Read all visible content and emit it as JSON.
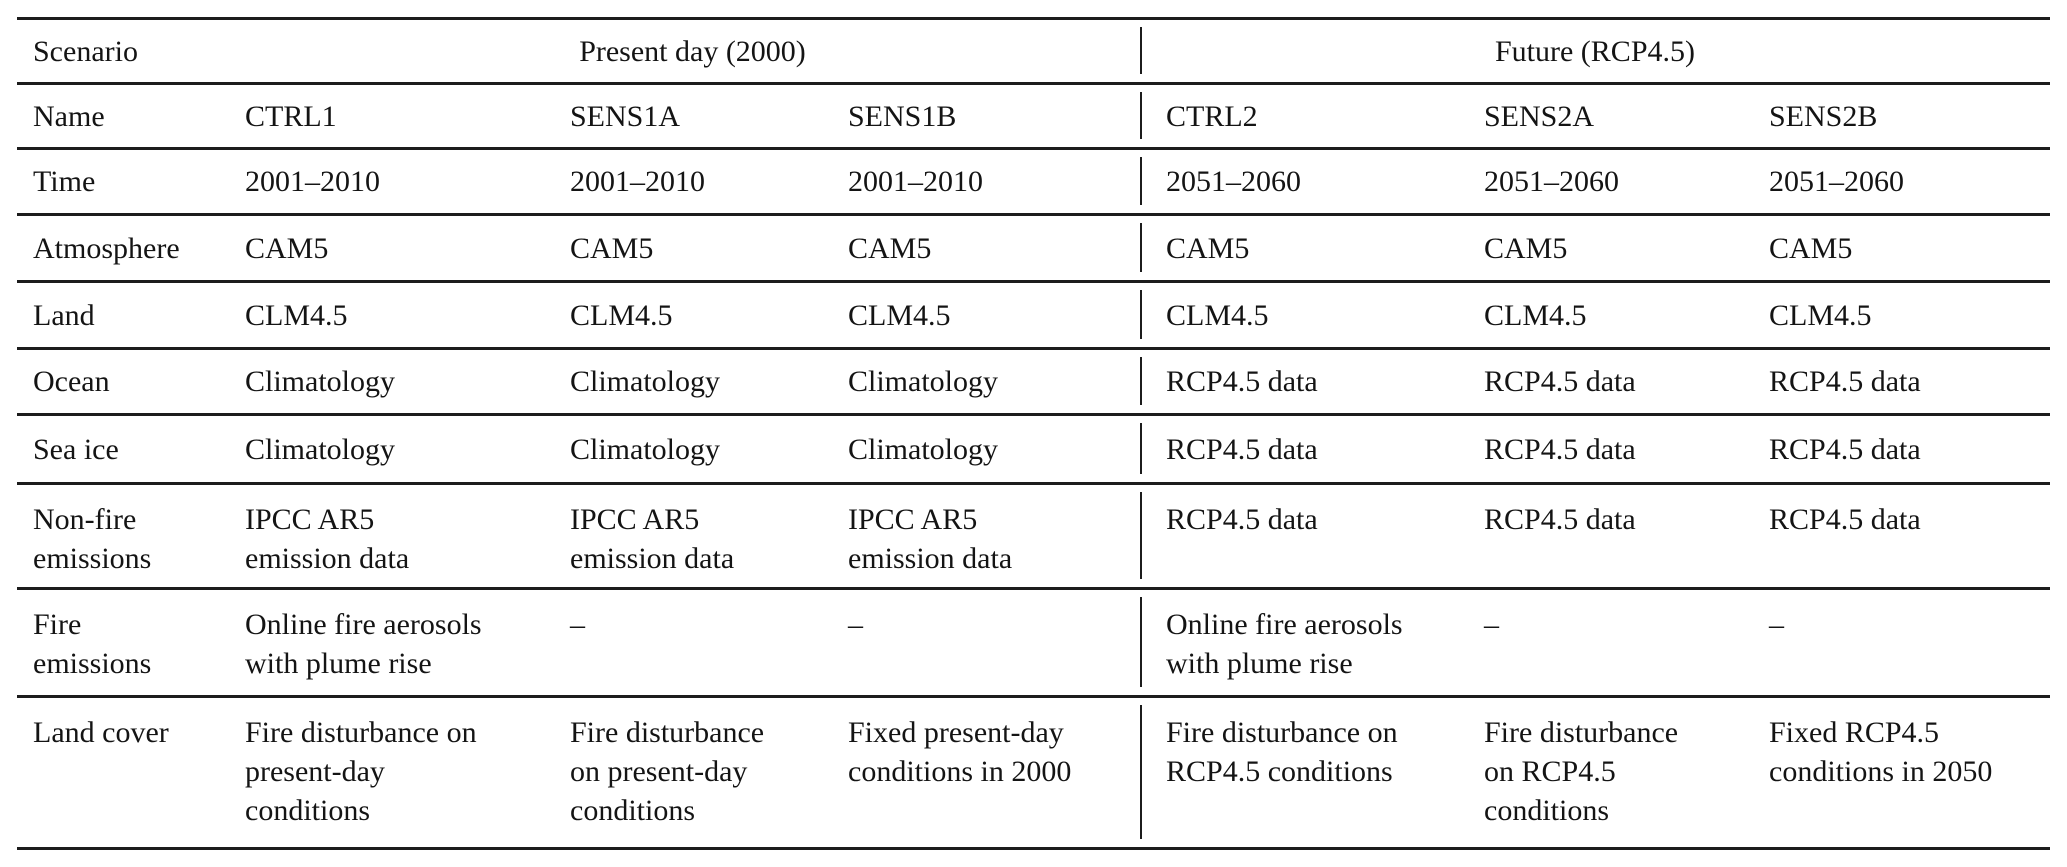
{
  "table": {
    "corner_label": "Scenario",
    "column_groups": [
      {
        "label": "Present day (2000)"
      },
      {
        "label": "Future (RCP4.5)"
      }
    ],
    "rows": [
      {
        "label": "Name",
        "cells": [
          "CTRL1",
          "SENS1A",
          "SENS1B",
          "CTRL2",
          "SENS2A",
          "SENS2B"
        ]
      },
      {
        "label": "Time",
        "cells": [
          "2001–2010",
          "2001–2010",
          "2001–2010",
          "2051–2060",
          "2051–2060",
          "2051–2060"
        ]
      },
      {
        "label": "Atmosphere",
        "cells": [
          "CAM5",
          "CAM5",
          "CAM5",
          "CAM5",
          "CAM5",
          "CAM5"
        ]
      },
      {
        "label": "Land",
        "cells": [
          "CLM4.5",
          "CLM4.5",
          "CLM4.5",
          "CLM4.5",
          "CLM4.5",
          "CLM4.5"
        ]
      },
      {
        "label": "Ocean",
        "cells": [
          "Climatology",
          "Climatology",
          "Climatology",
          "RCP4.5 data",
          "RCP4.5 data",
          "RCP4.5 data"
        ]
      },
      {
        "label": "Sea ice",
        "cells": [
          "Climatology",
          "Climatology",
          "Climatology",
          "RCP4.5 data",
          "RCP4.5 data",
          "RCP4.5 data"
        ]
      },
      {
        "label": "Non-fire\nemissions",
        "cells": [
          "IPCC AR5\nemission data",
          "IPCC AR5\nemission data",
          "IPCC AR5\nemission data",
          "RCP4.5 data",
          "RCP4.5 data",
          "RCP4.5 data"
        ]
      },
      {
        "label": "Fire\nemissions",
        "cells": [
          "Online fire aerosols\nwith plume rise",
          "–",
          "–",
          "Online fire aerosols\nwith plume rise",
          "–",
          "–"
        ]
      },
      {
        "label": "Land cover",
        "cells": [
          "Fire disturbance on\npresent-day\nconditions",
          "Fire disturbance\non present-day\nconditions",
          "Fixed present-day\nconditions in 2000",
          "Fire disturbance on\nRCP4.5 conditions",
          "Fire disturbance\non RCP4.5\nconditions",
          "Fixed RCP4.5\nconditions in 2050"
        ]
      }
    ],
    "colors": {
      "text": "#141414",
      "rule": "#1c1c1c",
      "background": "#ffffff"
    }
  }
}
